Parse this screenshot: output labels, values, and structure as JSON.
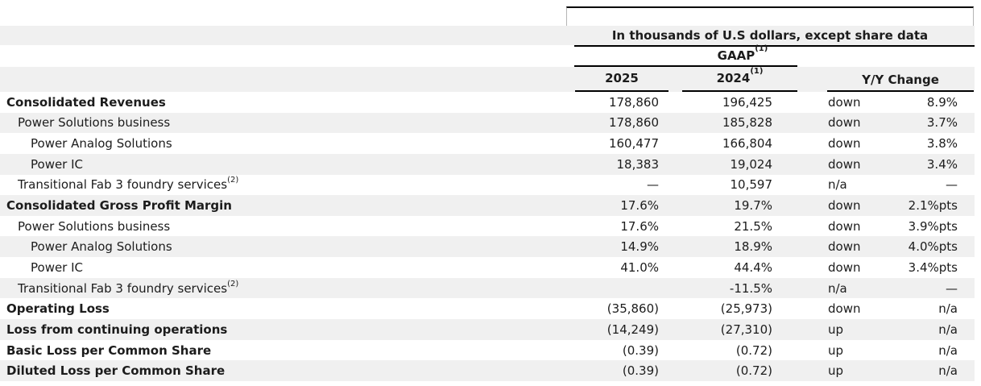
{
  "table": {
    "unit_note": "In thousands of U.S dollars, except share data",
    "group_header": {
      "label": "GAAP",
      "sup": "(1)"
    },
    "columns": {
      "y2025": "2025",
      "y2024": {
        "label": "2024",
        "sup": "(1)"
      },
      "yy": "Y/Y Change"
    },
    "rows": [
      {
        "label": "Consolidated Revenues",
        "sup": "",
        "level": 1,
        "bold": true,
        "v2025": "178,860",
        "v2024": "196,425",
        "dir": "down",
        "chg": "8.9%"
      },
      {
        "label": "Power Solutions business",
        "sup": "",
        "level": 2,
        "bold": false,
        "v2025": "178,860",
        "v2024": "185,828",
        "dir": "down",
        "chg": "3.7%"
      },
      {
        "label": "Power Analog Solutions",
        "sup": "",
        "level": 3,
        "bold": false,
        "v2025": "160,477",
        "v2024": "166,804",
        "dir": "down",
        "chg": "3.8%"
      },
      {
        "label": "Power IC",
        "sup": "",
        "level": 3,
        "bold": false,
        "v2025": "18,383",
        "v2024": "19,024",
        "dir": "down",
        "chg": "3.4%"
      },
      {
        "label": "Transitional Fab 3 foundry services",
        "sup": "(2)",
        "level": 2,
        "bold": false,
        "v2025": "—",
        "v2024": "10,597",
        "dir": "n/a",
        "chg": "—"
      },
      {
        "label": "Consolidated Gross Profit Margin",
        "sup": "",
        "level": 1,
        "bold": true,
        "v2025": "17.6%",
        "v2024": "19.7%",
        "dir": "down",
        "chg": "2.1%pts"
      },
      {
        "label": "Power Solutions business",
        "sup": "",
        "level": 2,
        "bold": false,
        "v2025": "17.6%",
        "v2024": "21.5%",
        "dir": "down",
        "chg": "3.9%pts"
      },
      {
        "label": "Power Analog Solutions",
        "sup": "",
        "level": 3,
        "bold": false,
        "v2025": "14.9%",
        "v2024": "18.9%",
        "dir": "down",
        "chg": "4.0%pts"
      },
      {
        "label": "Power IC",
        "sup": "",
        "level": 3,
        "bold": false,
        "v2025": "41.0%",
        "v2024": "44.4%",
        "dir": "down",
        "chg": "3.4%pts"
      },
      {
        "label": "Transitional Fab 3 foundry services",
        "sup": "(2)",
        "level": 2,
        "bold": false,
        "v2025": "",
        "v2024": "-11.5%",
        "dir": "n/a",
        "chg": "—"
      },
      {
        "label": "Operating Loss",
        "sup": "",
        "level": 1,
        "bold": true,
        "v2025": "(35,860)",
        "v2024": "(25,973)",
        "dir": "down",
        "chg": "n/a"
      },
      {
        "label": "Loss from continuing operations",
        "sup": "",
        "level": 1,
        "bold": true,
        "v2025": "(14,249)",
        "v2024": "(27,310)",
        "dir": "up",
        "chg": "n/a"
      },
      {
        "label": "Basic Loss per Common Share",
        "sup": "",
        "level": 1,
        "bold": true,
        "v2025": "(0.39)",
        "v2024": "(0.72)",
        "dir": "up",
        "chg": "n/a"
      },
      {
        "label": "Diluted Loss per Common Share",
        "sup": "",
        "level": 1,
        "bold": true,
        "v2025": "(0.39)",
        "v2024": "(0.72)",
        "dir": "up",
        "chg": "n/a"
      }
    ],
    "colors": {
      "stripe": "#f0f0f0",
      "text": "#1c1c1c",
      "rule": "#000000"
    }
  }
}
